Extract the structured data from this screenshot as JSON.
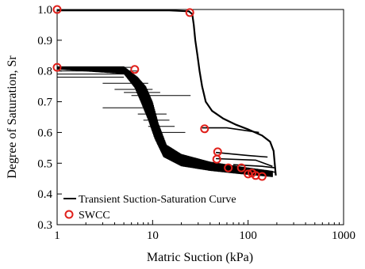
{
  "chart_data": {
    "type": "scatter",
    "xlabel": "Matric Suction (kPa)",
    "ylabel": "Degree of Saturation, Sr",
    "xscale": "log",
    "xlim": [
      1,
      1000
    ],
    "ylim": [
      0.3,
      1.0
    ],
    "x_ticks": [
      1,
      10,
      100,
      1000
    ],
    "x_tick_labels": [
      "1",
      "10",
      "100",
      "1000"
    ],
    "y_ticks": [
      0.3,
      0.4,
      0.5,
      0.6,
      0.7,
      0.8,
      0.9,
      1.0
    ],
    "y_tick_labels": [
      "0.3",
      "0.4",
      "0.5",
      "0.6",
      "0.7",
      "0.8",
      "0.9",
      "1.0"
    ],
    "grid": false,
    "legend_position": "bottom-left",
    "series": [
      {
        "name": "Transient Suction-Saturation Curve",
        "kind": "line",
        "color": "#000000",
        "main_path": [
          [
            1,
            0.997
          ],
          [
            5,
            0.997
          ],
          [
            15,
            0.997
          ],
          [
            24,
            0.994
          ],
          [
            26,
            0.985
          ],
          [
            27,
            0.95
          ],
          [
            28,
            0.9
          ],
          [
            29.5,
            0.85
          ],
          [
            31,
            0.8
          ],
          [
            33,
            0.75
          ],
          [
            36,
            0.7
          ],
          [
            42,
            0.67
          ],
          [
            55,
            0.645
          ],
          [
            75,
            0.625
          ],
          [
            100,
            0.61
          ],
          [
            140,
            0.59
          ],
          [
            170,
            0.57
          ],
          [
            185,
            0.54
          ],
          [
            190,
            0.5
          ],
          [
            195,
            0.46
          ]
        ],
        "fluctuation_band": {
          "x_range": [
            1,
            180
          ],
          "upper": [
            [
              1,
              0.815
            ],
            [
              5,
              0.815
            ],
            [
              7,
              0.78
            ],
            [
              8.5,
              0.75
            ],
            [
              10,
              0.7
            ],
            [
              11.5,
              0.63
            ],
            [
              14,
              0.56
            ],
            [
              20,
              0.53
            ],
            [
              40,
              0.505
            ],
            [
              80,
              0.49
            ],
            [
              180,
              0.475
            ]
          ],
          "lower": [
            [
              1,
              0.805
            ],
            [
              5,
              0.79
            ],
            [
              6.5,
              0.745
            ],
            [
              7.5,
              0.7
            ],
            [
              9,
              0.64
            ],
            [
              10.5,
              0.58
            ],
            [
              13,
              0.52
            ],
            [
              20,
              0.49
            ],
            [
              40,
              0.475
            ],
            [
              80,
              0.465
            ],
            [
              180,
              0.455
            ]
          ]
        },
        "side_loops": [
          [
            [
              33,
              0.615
            ],
            [
              60,
              0.615
            ],
            [
              130,
              0.6
            ]
          ],
          [
            [
              46,
              0.535
            ],
            [
              100,
              0.525
            ],
            [
              160,
              0.52
            ]
          ],
          [
            [
              46,
              0.515
            ],
            [
              120,
              0.51
            ],
            [
              180,
              0.49
            ]
          ],
          [
            [
              70,
              0.495
            ],
            [
              140,
              0.49
            ],
            [
              190,
              0.485
            ]
          ],
          [
            [
              100,
              0.48
            ],
            [
              160,
              0.475
            ],
            [
              195,
              0.47
            ]
          ]
        ]
      },
      {
        "name": "SWCC",
        "kind": "scatter",
        "marker": "open-circle",
        "color": "#e0201b",
        "points": [
          [
            1,
            1.0
          ],
          [
            24.5,
            0.99
          ],
          [
            1,
            0.812
          ],
          [
            6.5,
            0.805
          ],
          [
            35,
            0.612
          ],
          [
            48,
            0.537
          ],
          [
            47,
            0.513
          ],
          [
            62,
            0.485
          ],
          [
            85,
            0.485
          ],
          [
            100,
            0.465
          ],
          [
            110,
            0.468
          ],
          [
            120,
            0.46
          ],
          [
            140,
            0.457
          ]
        ]
      }
    ]
  }
}
